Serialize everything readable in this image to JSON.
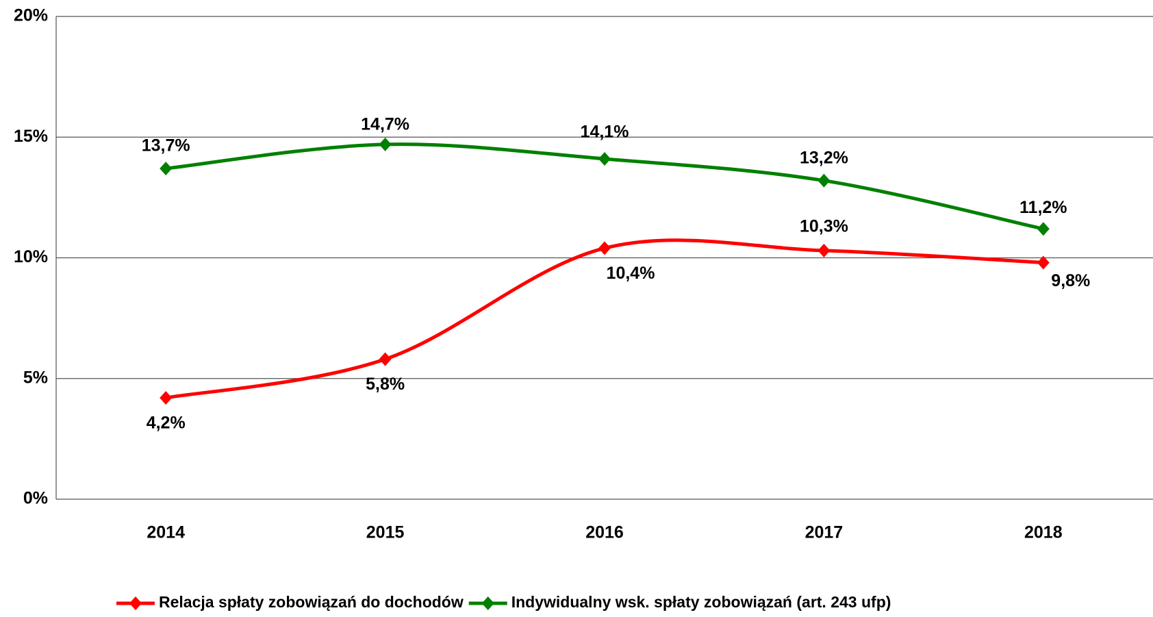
{
  "chart_data": {
    "type": "line",
    "categories": [
      "2014",
      "2015",
      "2016",
      "2017",
      "2018"
    ],
    "series": [
      {
        "name": "Relacja spłaty zobowiązań do dochodów",
        "color": "#ff0000",
        "values": [
          4.2,
          5.8,
          10.4,
          10.3,
          9.8
        ],
        "value_labels": [
          "4,2%",
          "5,8%",
          "10,4%",
          "10,3%",
          "9,8%"
        ]
      },
      {
        "name": "Indywidualny wsk. spłaty zobowiązań (art. 243 ufp)",
        "color": "#008000",
        "values": [
          13.7,
          14.7,
          14.1,
          13.2,
          11.2
        ],
        "value_labels": [
          "13,7%",
          "14,7%",
          "14,1%",
          "13,2%",
          "11,2%"
        ]
      }
    ],
    "ylim": [
      0,
      20
    ],
    "yticks": [
      {
        "value": 0,
        "label": "0%"
      },
      {
        "value": 5,
        "label": "5%"
      },
      {
        "value": 10,
        "label": "10%"
      },
      {
        "value": 15,
        "label": "15%"
      },
      {
        "value": 20,
        "label": "20%"
      }
    ],
    "grid": true,
    "smooth": true,
    "legend": "bottom"
  }
}
